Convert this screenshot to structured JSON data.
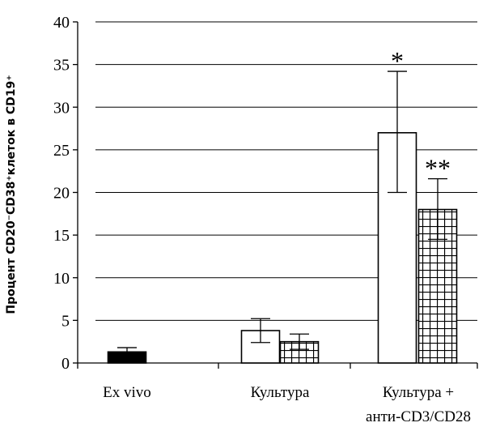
{
  "chart_data": {
    "type": "bar",
    "title": "",
    "xlabel": "",
    "ylabel": "Процент CD20⁻CD38⁺клеток в CD19⁺",
    "ylim": [
      0,
      40
    ],
    "yticks": [
      0,
      5,
      10,
      15,
      20,
      25,
      30,
      35,
      40
    ],
    "grid": true,
    "legend": "none",
    "categories": [
      {
        "line1": "Ex vivo",
        "line2": ""
      },
      {
        "line1": "Культура",
        "line2": ""
      },
      {
        "line1": "Культура +",
        "line2": "анти-CD3/CD28"
      }
    ],
    "bars": [
      {
        "category": 0,
        "pattern": "solid-black",
        "value": 1.3,
        "err_low": 0.8,
        "err_high": 1.8,
        "annotation": ""
      },
      {
        "category": 1,
        "pattern": "white",
        "value": 3.8,
        "err_low": 2.4,
        "err_high": 5.2,
        "annotation": ""
      },
      {
        "category": 1,
        "pattern": "grid",
        "value": 2.5,
        "err_low": 1.6,
        "err_high": 3.4,
        "annotation": ""
      },
      {
        "category": 2,
        "pattern": "white",
        "value": 27.0,
        "err_low": 20.0,
        "err_high": 34.2,
        "annotation": "*"
      },
      {
        "category": 2,
        "pattern": "grid",
        "value": 18.0,
        "err_low": 14.5,
        "err_high": 21.6,
        "annotation": "**"
      }
    ],
    "colors": {
      "axis": "#000000",
      "gridline": "#000000",
      "solid": "#000000",
      "white": "#ffffff"
    }
  }
}
